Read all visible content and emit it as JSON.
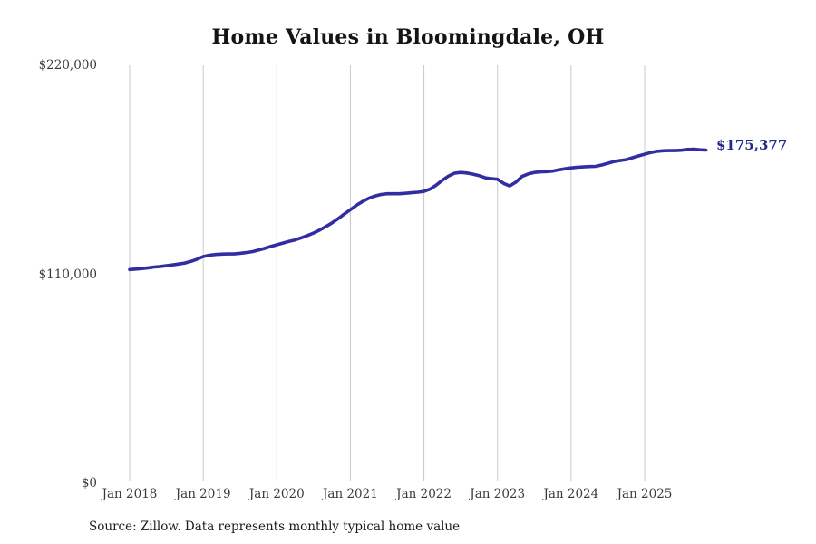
{
  "chart_data": {
    "type": "line",
    "title": "Home Values in Bloomingdale, OH",
    "source_note": "Source: Zillow. Data represents monthly typical home value",
    "end_label": "$175,377",
    "end_value": 175377,
    "colors": {
      "line": "#322da0",
      "end_label": "#1f2d86",
      "grid": "#c9c9c9",
      "tick_text": "#3a3a3a",
      "title_text": "#141414"
    },
    "y_axis": {
      "min": 0,
      "max": 220000,
      "ticks": [
        {
          "value": 220000,
          "label": "$220,000"
        },
        {
          "value": 110000,
          "label": "$110,000"
        },
        {
          "value": 0,
          "label": "$0"
        }
      ]
    },
    "x_axis": {
      "tick_labels": [
        "Jan 2018",
        "Jan 2019",
        "Jan 2020",
        "Jan 2021",
        "Jan 2022",
        "Jan 2023",
        "Jan 2024",
        "Jan 2025"
      ]
    },
    "series": [
      {
        "name": "Monthly typical home value",
        "interval": "monthly",
        "start": "2018-01",
        "end": "2025-11",
        "values": [
          112500,
          112700,
          113000,
          113400,
          113800,
          114100,
          114500,
          114900,
          115400,
          115900,
          116800,
          117900,
          119300,
          120000,
          120400,
          120600,
          120700,
          120700,
          121000,
          121400,
          121900,
          122700,
          123600,
          124600,
          125500,
          126400,
          127300,
          128100,
          129200,
          130400,
          131700,
          133300,
          135100,
          137000,
          139200,
          141700,
          144000,
          146300,
          148300,
          150000,
          151200,
          152000,
          152400,
          152400,
          152400,
          152600,
          152900,
          153200,
          153600,
          154800,
          156900,
          159500,
          161700,
          163200,
          163600,
          163300,
          162700,
          161900,
          160800,
          160300,
          160000,
          157800,
          156500,
          158500,
          161500,
          162800,
          163600,
          163900,
          164000,
          164300,
          165000,
          165500,
          166000,
          166300,
          166500,
          166700,
          166800,
          167500,
          168400,
          169300,
          169900,
          170300,
          171300,
          172300,
          173200,
          174100,
          174700,
          175000,
          175100,
          175100,
          175300,
          175700,
          175800,
          175500,
          175377
        ]
      }
    ]
  }
}
